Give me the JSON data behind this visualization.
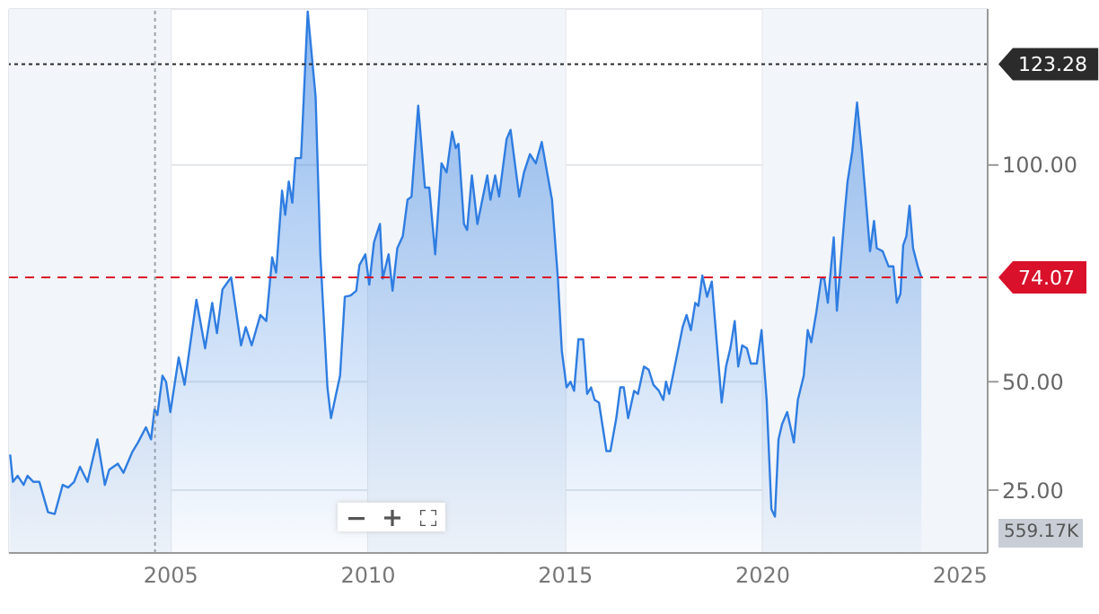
{
  "chart_data": {
    "type": "area",
    "color": "#2f7de1",
    "x": [
      2000.93,
      2001.0,
      2001.12,
      2001.27,
      2001.37,
      2001.52,
      2001.67,
      2001.89,
      2002.06,
      2002.26,
      2002.4,
      2002.55,
      2002.7,
      2002.89,
      2003.14,
      2003.33,
      2003.44,
      2003.66,
      2003.8,
      2004.03,
      2004.17,
      2004.37,
      2004.5,
      2004.59,
      2004.66,
      2004.79,
      2004.88,
      2004.99,
      2005.2,
      2005.35,
      2005.65,
      2005.87,
      2006.05,
      2006.17,
      2006.31,
      2006.53,
      2006.78,
      2006.9,
      2007.05,
      2007.27,
      2007.42,
      2007.57,
      2007.67,
      2007.82,
      2007.9,
      2007.99,
      2008.08,
      2008.16,
      2008.3,
      2008.47,
      2008.67,
      2008.79,
      2008.97,
      2009.06,
      2009.19,
      2009.29,
      2009.41,
      2009.56,
      2009.7,
      2009.78,
      2009.93,
      2010.03,
      2010.15,
      2010.3,
      2010.37,
      2010.52,
      2010.62,
      2010.74,
      2010.88,
      2011.0,
      2011.1,
      2011.27,
      2011.44,
      2011.55,
      2011.7,
      2011.86,
      2011.99,
      2012.13,
      2012.22,
      2012.29,
      2012.43,
      2012.51,
      2012.63,
      2012.77,
      2013.02,
      2013.1,
      2013.22,
      2013.32,
      2013.51,
      2013.61,
      2013.83,
      2013.95,
      2014.1,
      2014.25,
      2014.4,
      2014.55,
      2014.66,
      2014.81,
      2014.91,
      2015.03,
      2015.13,
      2015.22,
      2015.33,
      2015.45,
      2015.55,
      2015.65,
      2015.74,
      2015.85,
      2016.04,
      2016.14,
      2016.29,
      2016.39,
      2016.48,
      2016.59,
      2016.74,
      2016.84,
      2016.99,
      2017.11,
      2017.23,
      2017.37,
      2017.48,
      2017.55,
      2017.63,
      2017.77,
      2017.97,
      2018.07,
      2018.18,
      2018.29,
      2018.37,
      2018.47,
      2018.59,
      2018.71,
      2018.81,
      2018.96,
      2019.07,
      2019.18,
      2019.29,
      2019.38,
      2019.48,
      2019.6,
      2019.7,
      2019.85,
      2019.97,
      2020.1,
      2020.22,
      2020.31,
      2020.4,
      2020.49,
      2020.62,
      2020.79,
      2020.89,
      2021.04,
      2021.14,
      2021.23,
      2021.36,
      2021.48,
      2021.56,
      2021.65,
      2021.8,
      2021.88,
      2022.08,
      2022.15,
      2022.27,
      2022.39,
      2022.51,
      2022.6,
      2022.72,
      2022.82,
      2022.89,
      2023.04,
      2023.19,
      2023.31,
      2023.4,
      2023.49,
      2023.56,
      2023.64,
      2023.72,
      2023.81,
      2023.93,
      2024.02
    ],
    "values": [
      33.2,
      26.9,
      28.3,
      26.2,
      28.3,
      26.9,
      26.9,
      19.9,
      19.5,
      26.2,
      25.6,
      26.9,
      30.4,
      26.9,
      36.7,
      26.2,
      29.7,
      31.1,
      29.0,
      33.9,
      36.0,
      39.5,
      36.7,
      43.7,
      42.3,
      51.4,
      50.0,
      43.0,
      55.6,
      49.3,
      68.9,
      57.7,
      68.2,
      61.2,
      71.3,
      74.1,
      58.4,
      62.6,
      58.4,
      65.4,
      64.0,
      78.7,
      75.2,
      94.1,
      88.5,
      96.2,
      91.3,
      101.6,
      101.6,
      135.4,
      115.8,
      79.4,
      48.7,
      41.6,
      47.2,
      51.4,
      69.6,
      69.9,
      71.0,
      76.9,
      79.4,
      72.4,
      82.2,
      86.4,
      73.8,
      79.4,
      71.0,
      80.8,
      83.6,
      92.0,
      92.7,
      113.7,
      94.8,
      94.8,
      79.4,
      100.4,
      98.3,
      107.7,
      103.9,
      104.9,
      86.4,
      85.0,
      97.6,
      86.4,
      97.6,
      92.0,
      97.6,
      92.7,
      106.0,
      108.1,
      92.7,
      98.3,
      102.5,
      100.4,
      105.3,
      97.6,
      92.0,
      73.8,
      57.0,
      48.7,
      50.0,
      47.9,
      59.8,
      59.8,
      47.2,
      48.7,
      45.8,
      45.2,
      34.0,
      34.0,
      41.6,
      48.7,
      48.7,
      41.6,
      47.9,
      47.2,
      53.5,
      52.8,
      49.3,
      47.9,
      45.8,
      50.0,
      47.2,
      53.5,
      62.6,
      65.4,
      61.9,
      68.2,
      67.5,
      74.5,
      69.6,
      73.1,
      61.9,
      45.2,
      53.5,
      57.7,
      64.0,
      53.5,
      58.4,
      57.7,
      54.2,
      54.2,
      61.9,
      45.8,
      20.6,
      18.9,
      36.7,
      40.2,
      43.0,
      36.0,
      45.8,
      51.4,
      61.9,
      59.1,
      66.1,
      73.8,
      73.8,
      68.2,
      83.3,
      66.4,
      89.2,
      96.2,
      103.2,
      114.4,
      103.2,
      93.4,
      80.1,
      87.1,
      80.8,
      80.1,
      76.6,
      76.6,
      68.2,
      70.3,
      81.5,
      83.6,
      90.6,
      80.8,
      76.6,
      74.07
    ],
    "xlim": [
      2000.9,
      2025.7
    ],
    "xticks": [
      2005,
      2010,
      2015,
      2020,
      2025
    ],
    "ylim": [
      10.5,
      136
    ],
    "yticks": [
      {
        "value": 25,
        "label": "25.00"
      },
      {
        "value": 50,
        "label": "50.00"
      },
      {
        "value": 100,
        "label": "100.00"
      }
    ],
    "grid": true,
    "ref_lines": [
      {
        "axis": "y",
        "value": 74.07,
        "label": "74.07",
        "color": "#d9112a",
        "line_style": "dashed"
      },
      {
        "axis": "y",
        "value": 123.28,
        "label": "123.28",
        "color": "#2b2b2b",
        "line_style": "dotted"
      },
      {
        "axis": "x",
        "value": 2004.6,
        "label": null,
        "color": "#9aa3ad",
        "line_style": "dotted"
      }
    ],
    "bands": [
      {
        "axis": "x",
        "from": 2000.9,
        "to": 2005,
        "label": null,
        "color": "#f2f5f9"
      },
      {
        "axis": "x",
        "from": 2010,
        "to": 2015,
        "label": null,
        "color": "#f2f5f9"
      },
      {
        "axis": "x",
        "from": 2020,
        "to": 2025.7,
        "label": null,
        "color": "#f2f5f9"
      }
    ],
    "annotations": [
      "559.17K"
    ]
  }
}
